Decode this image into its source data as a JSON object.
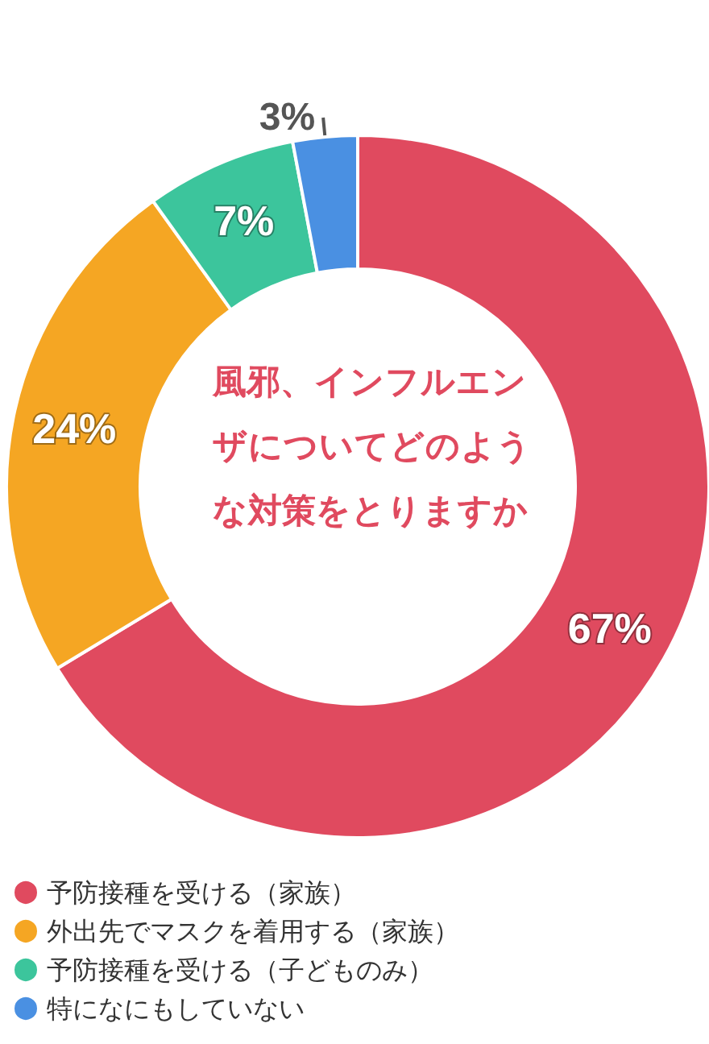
{
  "chart_data": {
    "type": "donut",
    "title": "風邪、インフルエンザについてどのような対策をとりますか",
    "categories": [
      "予防接種を受ける（家族）",
      "外出先でマスクを着用する（家族）",
      "予防接種を受ける（子どものみ）",
      "特になにもしていない"
    ],
    "values": [
      67,
      24,
      7,
      3
    ],
    "colors": [
      "#e04a5f",
      "#f5a623",
      "#3cc59c",
      "#4a90e2"
    ],
    "value_labels": [
      "67%",
      "24%",
      "7%",
      "3%"
    ],
    "legend": "bottom"
  }
}
